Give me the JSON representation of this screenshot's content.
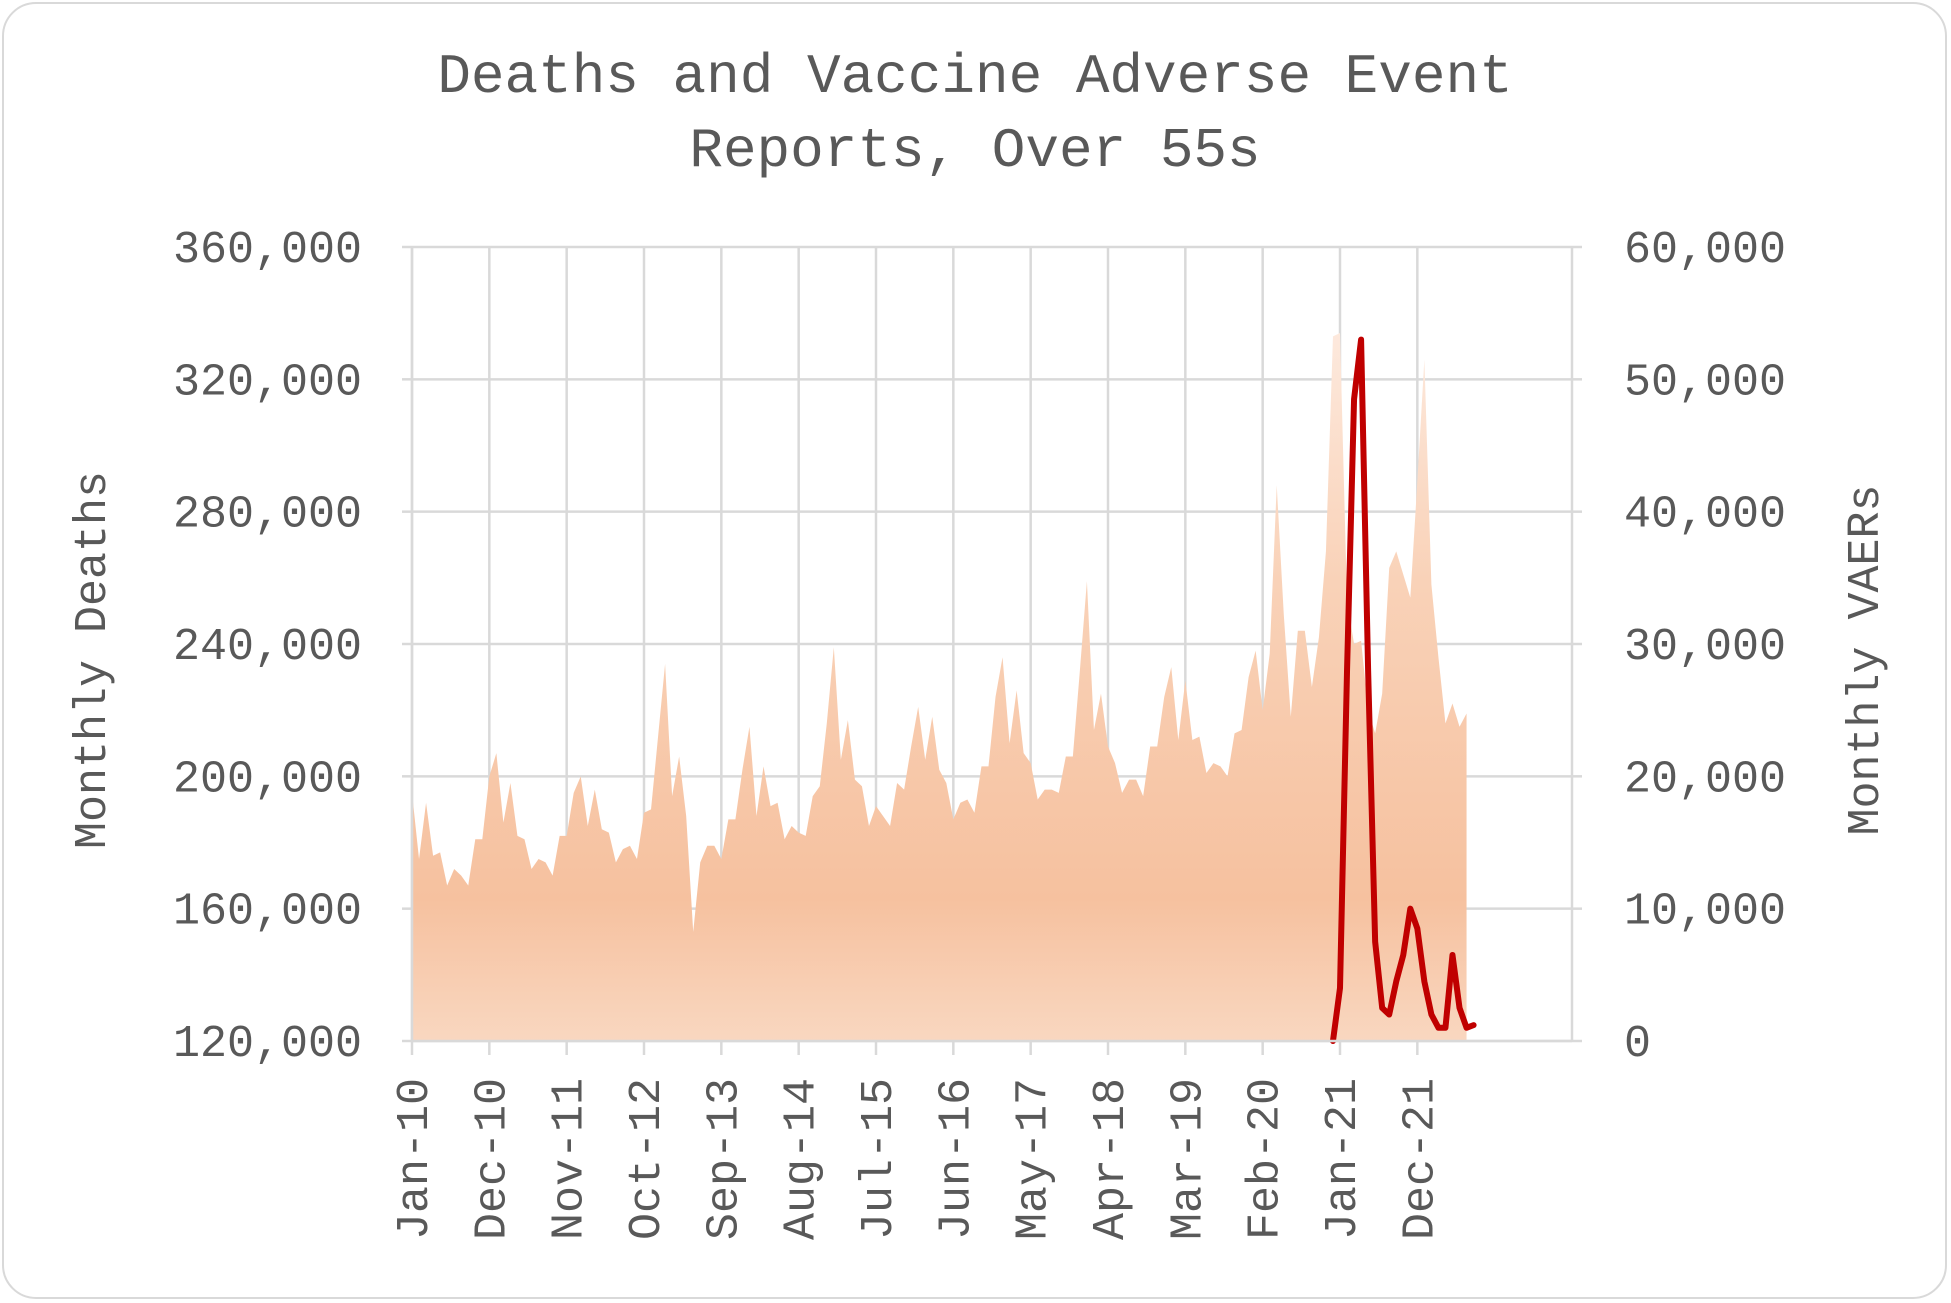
{
  "chart_data": {
    "type": "area+line",
    "title_lines": [
      "Deaths and Vaccine Adverse Event",
      "Reports, Over 55s"
    ],
    "ylabel_left": "Monthly Deaths",
    "ylabel_right": "Monthly VAERs",
    "ylim_left": [
      120000,
      360000
    ],
    "ylim_right": [
      0,
      60000
    ],
    "yticks_left": [
      "360,000",
      "320,000",
      "280,000",
      "240,000",
      "200,000",
      "160,000",
      "120,000"
    ],
    "yticks_right": [
      "60,000",
      "50,000",
      "40,000",
      "30,000",
      "20,000",
      "10,000",
      "0"
    ],
    "x_tick_labels": [
      "Jan-10",
      "Dec-10",
      "Nov-11",
      "Oct-12",
      "Sep-13",
      "Aug-14",
      "Jul-15",
      "Jun-16",
      "May-17",
      "Apr-18",
      "Mar-19",
      "Feb-20",
      "Jan-21",
      "Dec-21"
    ],
    "x_start": "Jan-10",
    "grid": true,
    "legend": "none",
    "series": [
      {
        "axis": "left",
        "style": "area",
        "color": "#f6c3a1",
        "values": [
          195000,
          175000,
          192000,
          176000,
          177000,
          167000,
          172000,
          170000,
          167000,
          181000,
          181000,
          200000,
          207000,
          186000,
          198000,
          182000,
          181000,
          172000,
          175000,
          174000,
          170000,
          182000,
          182000,
          195000,
          200000,
          185000,
          196000,
          184000,
          183000,
          174000,
          178000,
          179000,
          175000,
          189000,
          190000,
          212000,
          234000,
          194000,
          206000,
          188000,
          153000,
          174000,
          179000,
          179000,
          175000,
          187000,
          187000,
          202000,
          215000,
          188000,
          203000,
          191000,
          192000,
          181000,
          185000,
          183000,
          182000,
          194000,
          197000,
          216000,
          239000,
          205000,
          217000,
          199000,
          197000,
          185000,
          191000,
          188000,
          185000,
          198000,
          196000,
          209000,
          221000,
          205000,
          218000,
          202000,
          198000,
          187000,
          192000,
          193000,
          189000,
          203000,
          203000,
          224000,
          236000,
          210000,
          226000,
          207000,
          204000,
          193000,
          196000,
          196000,
          195000,
          206000,
          206000,
          232000,
          259000,
          214000,
          225000,
          209000,
          204000,
          195000,
          199000,
          199000,
          194000,
          209000,
          209000,
          224000,
          233000,
          211000,
          229000,
          211000,
          212000,
          201000,
          204000,
          203000,
          200000,
          213000,
          214000,
          230000,
          238000,
          220000,
          237000,
          288000,
          249000,
          218000,
          244000,
          244000,
          227000,
          242000,
          268000,
          333000,
          334000,
          253000,
          240000,
          241000,
          220000,
          213000,
          225000,
          263000,
          268000,
          261000,
          254000,
          289000,
          326000,
          258000,
          236000,
          216000,
          222000,
          215000,
          219000
        ]
      },
      {
        "axis": "right",
        "style": "line",
        "color": "#c00000",
        "x_start_index": 131,
        "values": [
          0,
          4000,
          28000,
          48500,
          53000,
          28000,
          7500,
          2500,
          2000,
          4500,
          6500,
          10000,
          8500,
          4500,
          2000,
          1000,
          1000,
          6500,
          2500,
          1000,
          1200
        ]
      }
    ]
  }
}
